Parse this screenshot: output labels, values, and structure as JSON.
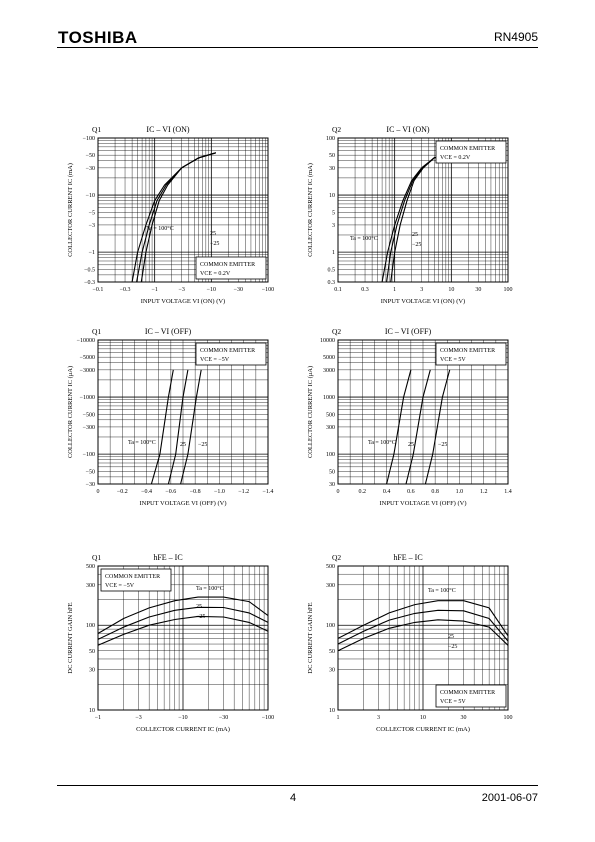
{
  "header": {
    "brand": "TOSHIBA",
    "part_number": "RN4905"
  },
  "footer": {
    "page": "4",
    "date": "2001-06-07"
  },
  "chart_data": [
    {
      "id": "c1",
      "type": "line",
      "scale": "loglog",
      "panel": "Q1",
      "title": "IC – VI (ON)",
      "xlabel": "INPUT VOLTAGE  VI (ON)  (V)",
      "ylabel": "COLLECTOR CURRENT  IC  (mA)",
      "xlim": [
        0.1,
        100
      ],
      "ylim": [
        0.3,
        100
      ],
      "xticks": [
        0.1,
        0.3,
        1,
        3,
        10,
        30,
        100
      ],
      "xticklabels": [
        "−0.1",
        "−0.3",
        "−1",
        "−3",
        "−10",
        "−30",
        "−100"
      ],
      "yticks": [
        0.3,
        0.5,
        1,
        3,
        5,
        10,
        30,
        50,
        100
      ],
      "yticklabels": [
        "−0.3",
        "−0.5",
        "−1",
        "−3",
        "−5",
        "−10",
        "−30",
        "−50",
        "−100"
      ],
      "box": {
        "lines": [
          "COMMON EMITTER",
          "VCE = 0.2V"
        ]
      },
      "annotations": [
        "Ta = 100°C",
        "25",
        "−25"
      ],
      "series": [
        {
          "name": "Ta = 100°C",
          "x": [
            0.4,
            0.5,
            0.7,
            1.0,
            1.5,
            3,
            6,
            12
          ],
          "y": [
            0.3,
            1,
            3,
            8,
            15,
            30,
            45,
            55
          ]
        },
        {
          "name": "25",
          "x": [
            0.48,
            0.6,
            0.8,
            1.1,
            1.6,
            3,
            6,
            12
          ],
          "y": [
            0.3,
            1,
            3,
            8,
            15,
            30,
            45,
            55
          ]
        },
        {
          "name": "−25",
          "x": [
            0.58,
            0.7,
            0.9,
            1.2,
            1.7,
            3,
            6,
            12
          ],
          "y": [
            0.3,
            1,
            3,
            8,
            15,
            30,
            45,
            55
          ]
        }
      ]
    },
    {
      "id": "c2",
      "type": "line",
      "scale": "loglog",
      "panel": "Q2",
      "title": "IC – VI (ON)",
      "xlabel": "INPUT VOLTAGE  VI (ON)  (V)",
      "ylabel": "COLLECTOR CURRENT  IC  (mA)",
      "xlim": [
        0.1,
        100
      ],
      "ylim": [
        0.3,
        100
      ],
      "xticks": [
        0.1,
        0.3,
        1,
        3,
        10,
        30,
        100
      ],
      "xticklabels": [
        "0.1",
        "0.3",
        "1",
        "3",
        "10",
        "30",
        "100"
      ],
      "yticks": [
        0.3,
        0.5,
        1,
        3,
        5,
        10,
        30,
        50,
        100
      ],
      "yticklabels": [
        "0.3",
        "0.5",
        "1",
        "3",
        "5",
        "10",
        "30",
        "50",
        "100"
      ],
      "box": {
        "lines": [
          "COMMON EMITTER",
          "VCE = 0.2V"
        ]
      },
      "annotations": [
        "Ta = 100°C",
        "25",
        "−25"
      ],
      "series": [
        {
          "name": "Ta = 100°C",
          "x": [
            0.6,
            0.75,
            1.0,
            1.4,
            2.0,
            3,
            5,
            8
          ],
          "y": [
            0.3,
            1,
            3,
            8,
            18,
            30,
            45,
            50
          ]
        },
        {
          "name": "25",
          "x": [
            0.72,
            0.85,
            1.1,
            1.5,
            2.1,
            3.1,
            5,
            8
          ],
          "y": [
            0.3,
            1,
            3,
            8,
            18,
            30,
            45,
            50
          ]
        },
        {
          "name": "−25",
          "x": [
            0.85,
            1.0,
            1.25,
            1.65,
            2.2,
            3.2,
            5,
            8
          ],
          "y": [
            0.3,
            1,
            3,
            8,
            18,
            30,
            45,
            50
          ]
        }
      ]
    },
    {
      "id": "c3",
      "type": "line",
      "scale": "linlog",
      "panel": "Q1",
      "title": "IC – VI (OFF)",
      "xlabel": "INPUT VOLTAGE  VI (OFF)  (V)",
      "ylabel": "COLLECTOR CURRENT  IC  (μA)",
      "xlim": [
        0,
        1.4
      ],
      "ylim": [
        30,
        10000
      ],
      "xticks": [
        0,
        0.2,
        0.4,
        0.6,
        0.8,
        1.0,
        1.2,
        1.4
      ],
      "xticklabels": [
        "0",
        "−0.2",
        "−0.4",
        "−0.6",
        "−0.8",
        "−1.0",
        "−1.2",
        "−1.4"
      ],
      "yticks": [
        30,
        50,
        100,
        300,
        500,
        1000,
        3000,
        5000,
        10000
      ],
      "yticklabels": [
        "−30",
        "−50",
        "−100",
        "−300",
        "−500",
        "−1000",
        "−3000",
        "−5000",
        "−10000"
      ],
      "box": {
        "lines": [
          "COMMON EMITTER",
          "VCE = −5V"
        ]
      },
      "annotations": [
        "Ta = 100°C",
        "25",
        "−25"
      ],
      "series": [
        {
          "name": "Ta = 100°C",
          "x": [
            0.44,
            0.51,
            0.58,
            0.62
          ],
          "y": [
            30,
            100,
            1000,
            3000
          ]
        },
        {
          "name": "25",
          "x": [
            0.58,
            0.64,
            0.7,
            0.74
          ],
          "y": [
            30,
            100,
            1000,
            3000
          ]
        },
        {
          "name": "−25",
          "x": [
            0.68,
            0.74,
            0.81,
            0.85
          ],
          "y": [
            30,
            100,
            1000,
            3000
          ]
        }
      ]
    },
    {
      "id": "c4",
      "type": "line",
      "scale": "linlog",
      "panel": "Q2",
      "title": "IC – VI (OFF)",
      "xlabel": "INPUT VOLTAGE  VI (OFF)  (V)",
      "ylabel": "COLLECTOR CURRENT  IC  (μA)",
      "xlim": [
        0,
        1.4
      ],
      "ylim": [
        30,
        10000
      ],
      "xticks": [
        0,
        0.2,
        0.4,
        0.6,
        0.8,
        1.0,
        1.2,
        1.4
      ],
      "xticklabels": [
        "0",
        "0.2",
        "0.4",
        "0.6",
        "0.8",
        "1.0",
        "1.2",
        "1.4"
      ],
      "yticks": [
        30,
        50,
        100,
        300,
        500,
        1000,
        3000,
        5000,
        10000
      ],
      "yticklabels": [
        "30",
        "50",
        "100",
        "300",
        "500",
        "1000",
        "3000",
        "5000",
        "10000"
      ],
      "box": {
        "lines": [
          "COMMON EMITTER",
          "VCE = 5V"
        ]
      },
      "annotations": [
        "Ta = 100°C",
        "25",
        "−25"
      ],
      "series": [
        {
          "name": "Ta = 100°C",
          "x": [
            0.4,
            0.46,
            0.54,
            0.6
          ],
          "y": [
            30,
            100,
            1000,
            3000
          ]
        },
        {
          "name": "25",
          "x": [
            0.56,
            0.62,
            0.7,
            0.76
          ],
          "y": [
            30,
            100,
            1000,
            3000
          ]
        },
        {
          "name": "−25",
          "x": [
            0.72,
            0.78,
            0.86,
            0.92
          ],
          "y": [
            30,
            100,
            1000,
            3000
          ]
        }
      ]
    },
    {
      "id": "c5",
      "type": "line",
      "scale": "loglog",
      "panel": "Q1",
      "title": "hFE – IC",
      "xlabel": "COLLECTOR CURRENT  IC  (mA)",
      "ylabel": "DC CURRENT GAIN  hFE",
      "xlim": [
        1,
        100
      ],
      "ylim": [
        10,
        500
      ],
      "xticks": [
        1,
        3,
        10,
        30,
        100
      ],
      "xticklabels": [
        "−1",
        "−3",
        "−10",
        "−30",
        "−100"
      ],
      "yticks": [
        10,
        30,
        50,
        100,
        300,
        500
      ],
      "yticklabels": [
        "10",
        "30",
        "50",
        "100",
        "300",
        "500"
      ],
      "box": {
        "lines": [
          "COMMON EMITTER",
          "VCE = −5V"
        ]
      },
      "annotations": [
        "Ta = 100°C",
        "25",
        "−25"
      ],
      "series": [
        {
          "name": "Ta = 100°C",
          "x": [
            1,
            2,
            4,
            8,
            15,
            30,
            60,
            100
          ],
          "y": [
            80,
            120,
            160,
            195,
            215,
            215,
            190,
            130
          ]
        },
        {
          "name": "25",
          "x": [
            1,
            2,
            4,
            8,
            15,
            30,
            60,
            100
          ],
          "y": [
            68,
            95,
            125,
            150,
            163,
            162,
            140,
            108
          ]
        },
        {
          "name": "−25",
          "x": [
            1,
            2,
            4,
            8,
            15,
            30,
            60,
            100
          ],
          "y": [
            58,
            78,
            100,
            117,
            127,
            125,
            108,
            85
          ]
        }
      ]
    },
    {
      "id": "c6",
      "type": "line",
      "scale": "loglog",
      "panel": "Q2",
      "title": "hFE – IC",
      "xlabel": "COLLECTOR CURRENT  IC  (mA)",
      "ylabel": "DC CURRENT GAIN  hFE",
      "xlim": [
        1,
        100
      ],
      "ylim": [
        10,
        500
      ],
      "xticks": [
        1,
        3,
        10,
        30,
        100
      ],
      "xticklabels": [
        "1",
        "3",
        "10",
        "30",
        "100"
      ],
      "yticks": [
        10,
        30,
        50,
        100,
        300,
        500
      ],
      "yticklabels": [
        "10",
        "30",
        "50",
        "100",
        "300",
        "500"
      ],
      "box": {
        "lines": [
          "COMMON EMITTER",
          "VCE = 5V"
        ]
      },
      "annotations": [
        "Ta = 100°C",
        "25",
        "−25"
      ],
      "series": [
        {
          "name": "Ta = 100°C",
          "x": [
            1,
            2,
            4,
            8,
            15,
            30,
            60,
            100
          ],
          "y": [
            70,
            100,
            140,
            175,
            195,
            195,
            160,
            75
          ]
        },
        {
          "name": "25",
          "x": [
            1,
            2,
            4,
            8,
            15,
            30,
            60,
            100
          ],
          "y": [
            60,
            85,
            115,
            138,
            150,
            148,
            120,
            65
          ]
        },
        {
          "name": "−25",
          "x": [
            1,
            2,
            4,
            8,
            15,
            30,
            60,
            100
          ],
          "y": [
            50,
            70,
            92,
            108,
            116,
            112,
            95,
            58
          ]
        }
      ]
    }
  ]
}
